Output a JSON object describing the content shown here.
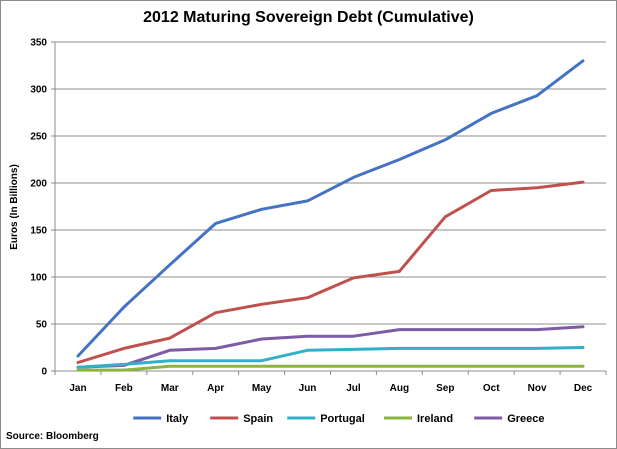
{
  "chart_data": {
    "type": "line",
    "title": "2012 Maturing Sovereign Debt (Cumulative)",
    "xlabel": "",
    "ylabel": "Euros (In Billions)",
    "ylim": [
      0,
      350
    ],
    "yticks": [
      0,
      50,
      100,
      150,
      200,
      250,
      300,
      350
    ],
    "grid": true,
    "legend_position": "bottom",
    "categories": [
      "Jan",
      "Feb",
      "Mar",
      "Apr",
      "May",
      "Jun",
      "Jul",
      "Aug",
      "Sep",
      "Oct",
      "Nov",
      "Dec"
    ],
    "series": [
      {
        "name": "Italy",
        "color": "#4472c4",
        "values": [
          16,
          68,
          113,
          157,
          172,
          181,
          206,
          225,
          246,
          274,
          293,
          330
        ]
      },
      {
        "name": "Spain",
        "color": "#c0504d",
        "values": [
          9,
          24,
          35,
          62,
          71,
          78,
          99,
          106,
          164,
          192,
          195,
          201
        ]
      },
      {
        "name": "Portugal",
        "color": "#31b0c8",
        "values": [
          4,
          7,
          11,
          11,
          11,
          22,
          23,
          24,
          24,
          24,
          24,
          25
        ]
      },
      {
        "name": "Ireland",
        "color": "#8db43f",
        "values": [
          1,
          1,
          5,
          5,
          5,
          5,
          5,
          5,
          5,
          5,
          5,
          5
        ]
      },
      {
        "name": "Greece",
        "color": "#7d5ba6",
        "values": [
          4,
          6,
          22,
          24,
          34,
          37,
          37,
          44,
          44,
          44,
          44,
          47
        ]
      }
    ],
    "source": "Source: Bloomberg"
  }
}
